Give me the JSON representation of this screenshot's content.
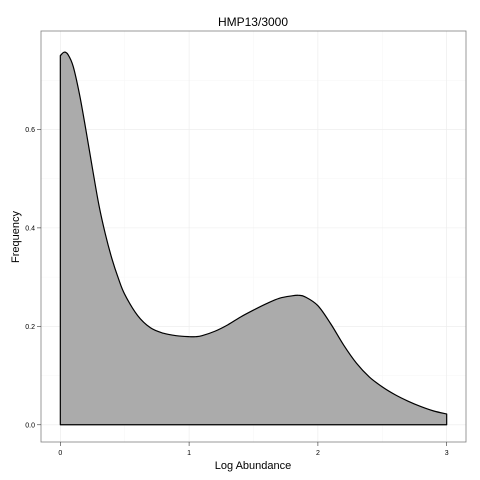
{
  "chart_data": {
    "type": "area",
    "title": "HMP13/3000",
    "xlabel": "Log Abundance",
    "ylabel": "Frequency",
    "xlim": [
      -0.15,
      3.15
    ],
    "ylim": [
      -0.035,
      0.8
    ],
    "x_ticks": [
      0,
      1,
      2,
      3
    ],
    "x_tick_labels": [
      "0",
      "1",
      "2",
      "3"
    ],
    "y_ticks": [
      0.0,
      0.2,
      0.4,
      0.6
    ],
    "y_tick_labels": [
      "0.0",
      "0.2",
      "0.4",
      "0.6"
    ],
    "grid": true,
    "legend": "none",
    "fill_color": "#ababab",
    "line_color": "#000000",
    "series": [
      {
        "x": [
          0.0,
          0.03,
          0.06,
          0.1,
          0.15,
          0.2,
          0.25,
          0.3,
          0.35,
          0.4,
          0.45,
          0.5,
          0.6,
          0.7,
          0.8,
          0.9,
          1.0,
          1.05,
          1.1,
          1.2,
          1.3,
          1.4,
          1.5,
          1.6,
          1.7,
          1.8,
          1.85,
          1.9,
          2.0,
          2.1,
          2.2,
          2.3,
          2.4,
          2.5,
          2.6,
          2.7,
          2.8,
          2.9,
          3.0
        ],
        "y": [
          0.75,
          0.757,
          0.752,
          0.728,
          0.67,
          0.597,
          0.52,
          0.446,
          0.387,
          0.338,
          0.298,
          0.265,
          0.222,
          0.197,
          0.186,
          0.181,
          0.179,
          0.179,
          0.181,
          0.19,
          0.203,
          0.219,
          0.233,
          0.246,
          0.257,
          0.262,
          0.263,
          0.26,
          0.242,
          0.205,
          0.162,
          0.125,
          0.097,
          0.077,
          0.061,
          0.048,
          0.037,
          0.028,
          0.022
        ]
      }
    ]
  }
}
